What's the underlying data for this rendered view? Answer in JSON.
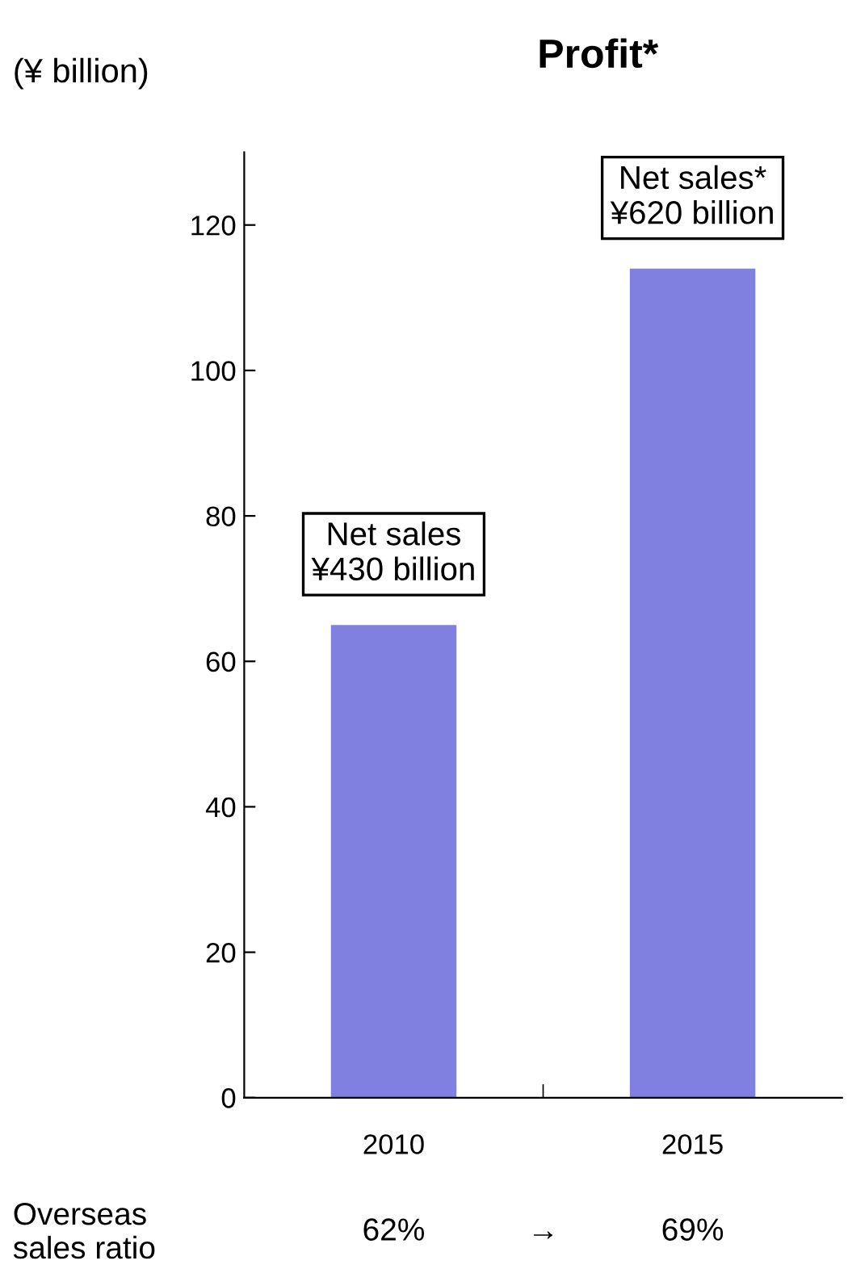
{
  "chart_data": {
    "type": "bar",
    "title": "Profit*",
    "ylabel": "(¥ billion)",
    "categories": [
      "2010",
      "2015"
    ],
    "values": [
      65,
      114
    ],
    "color": "#8080e0",
    "ylim": [
      0,
      130
    ],
    "yticks": [
      0,
      20,
      40,
      60,
      80,
      100,
      120
    ],
    "grid": false,
    "annotations": [
      {
        "text": "Net sales\n¥430 billion",
        "x": "2010",
        "y": 65
      },
      {
        "text": "Net sales*\n¥620 billion",
        "x": "2015",
        "y": 114
      },
      "Overseas\nsales ratio",
      "62%",
      "→",
      "69%"
    ]
  }
}
